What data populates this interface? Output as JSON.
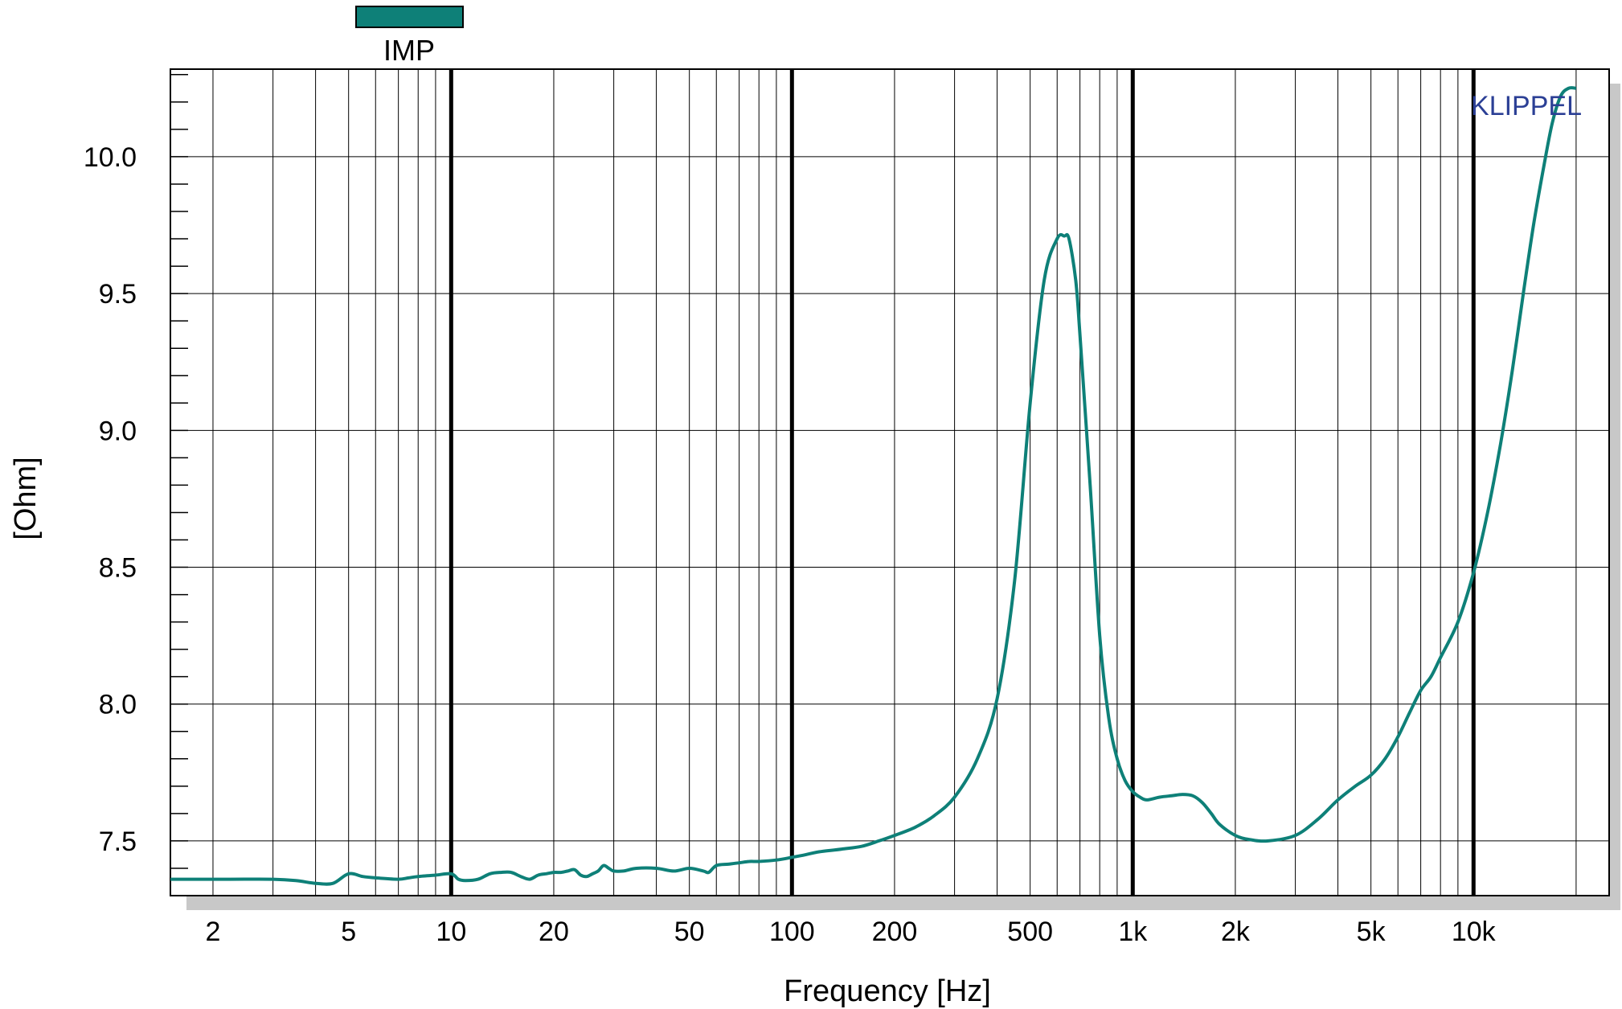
{
  "chart_data": {
    "type": "line",
    "title": "",
    "xlabel": "Frequency [Hz]",
    "ylabel": "[Ohm]",
    "x_scale": "log",
    "xlim": [
      1.5,
      25000
    ],
    "ylim": [
      7.3,
      10.32
    ],
    "grid": true,
    "watermark": "KLIPPEL",
    "watermark_color": "#2b3f95",
    "x_ticks": [
      {
        "value": 2,
        "label": "2"
      },
      {
        "value": 5,
        "label": "5"
      },
      {
        "value": 10,
        "label": "10"
      },
      {
        "value": 20,
        "label": "20"
      },
      {
        "value": 50,
        "label": "50"
      },
      {
        "value": 100,
        "label": "100"
      },
      {
        "value": 200,
        "label": "200"
      },
      {
        "value": 500,
        "label": "500"
      },
      {
        "value": 1000,
        "label": "1k"
      },
      {
        "value": 2000,
        "label": "2k"
      },
      {
        "value": 5000,
        "label": "5k"
      },
      {
        "value": 10000,
        "label": "10k"
      }
    ],
    "y_ticks": [
      {
        "value": 7.5,
        "label": "7.5"
      },
      {
        "value": 8.0,
        "label": "8.0"
      },
      {
        "value": 8.5,
        "label": "8.5"
      },
      {
        "value": 9.0,
        "label": "9.0"
      },
      {
        "value": 9.5,
        "label": "9.5"
      },
      {
        "value": 10.0,
        "label": "10.0"
      }
    ],
    "legend": {
      "position": "top-left",
      "entries": [
        {
          "label": "IMP",
          "color": "#0e8078"
        }
      ]
    },
    "series": [
      {
        "name": "IMP",
        "color": "#0e8078",
        "x": [
          1.5,
          2.2,
          3.0,
          3.5,
          4.0,
          4.5,
          5.0,
          5.5,
          6.0,
          7.0,
          7.5,
          8.0,
          9.0,
          10.0,
          10.5,
          11.0,
          12.0,
          13.0,
          14.0,
          15.0,
          16.0,
          17.0,
          18.0,
          19.0,
          20.0,
          21.0,
          22.0,
          23.0,
          24.0,
          25.0,
          26.0,
          27.0,
          28.0,
          29.0,
          30.0,
          32.0,
          35.0,
          40.0,
          45.0,
          50.0,
          55.0,
          57.0,
          60.0,
          65.0,
          70.0,
          75.0,
          80.0,
          90.0,
          100.0,
          110.0,
          120.0,
          140.0,
          160.0,
          180.0,
          200.0,
          230.0,
          260.0,
          300.0,
          350.0,
          400.0,
          450.0,
          500.0,
          550.0,
          600.0,
          630.0,
          650.0,
          680.0,
          700.0,
          750.0,
          800.0,
          850.0,
          900.0,
          950.0,
          1000.0,
          1050.0,
          1100.0,
          1200.0,
          1300.0,
          1400.0,
          1500.0,
          1600.0,
          1700.0,
          1800.0,
          2000.0,
          2200.0,
          2500.0,
          3000.0,
          3500.0,
          4000.0,
          4500.0,
          5000.0,
          5500.0,
          6000.0,
          6500.0,
          7000.0,
          7500.0,
          8000.0,
          9000.0,
          10000.0,
          11000.0,
          12000.0,
          13000.0,
          14000.0,
          15000.0,
          16000.0,
          17000.0,
          18000.0,
          19000.0,
          20000.0
        ],
        "y": [
          7.36,
          7.36,
          7.36,
          7.355,
          7.345,
          7.345,
          7.38,
          7.37,
          7.365,
          7.36,
          7.365,
          7.37,
          7.375,
          7.38,
          7.36,
          7.355,
          7.36,
          7.38,
          7.385,
          7.385,
          7.37,
          7.36,
          7.375,
          7.38,
          7.385,
          7.385,
          7.39,
          7.395,
          7.375,
          7.37,
          7.38,
          7.39,
          7.41,
          7.4,
          7.39,
          7.39,
          7.4,
          7.4,
          7.39,
          7.4,
          7.39,
          7.385,
          7.41,
          7.415,
          7.42,
          7.425,
          7.425,
          7.43,
          7.44,
          7.45,
          7.46,
          7.47,
          7.48,
          7.5,
          7.52,
          7.55,
          7.59,
          7.66,
          7.8,
          8.02,
          8.45,
          9.1,
          9.55,
          9.7,
          9.71,
          9.7,
          9.55,
          9.35,
          8.8,
          8.25,
          7.95,
          7.8,
          7.72,
          7.68,
          7.66,
          7.65,
          7.66,
          7.665,
          7.67,
          7.665,
          7.64,
          7.6,
          7.56,
          7.52,
          7.505,
          7.5,
          7.52,
          7.58,
          7.65,
          7.7,
          7.74,
          7.8,
          7.88,
          7.97,
          8.05,
          8.1,
          8.17,
          8.3,
          8.48,
          8.7,
          8.95,
          9.22,
          9.5,
          9.75,
          9.95,
          10.12,
          10.22,
          10.25,
          10.25
        ]
      }
    ]
  }
}
